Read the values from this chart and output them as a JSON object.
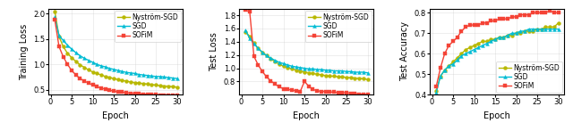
{
  "colors": {
    "nystrom": "#b8b800",
    "sgd": "#00bcd4",
    "sofim": "#f44336"
  },
  "marker_nystrom": "o",
  "marker_sgd": "^",
  "marker_sofim": "s",
  "epochs": [
    1,
    2,
    3,
    4,
    5,
    6,
    7,
    8,
    9,
    10,
    11,
    12,
    13,
    14,
    15,
    16,
    17,
    18,
    19,
    20,
    21,
    22,
    23,
    24,
    25,
    26,
    27,
    28,
    29,
    30
  ],
  "train_nystrom": [
    2.05,
    1.55,
    1.35,
    1.22,
    1.13,
    1.06,
    0.99,
    0.94,
    0.89,
    0.85,
    0.82,
    0.79,
    0.76,
    0.74,
    0.72,
    0.7,
    0.68,
    0.67,
    0.65,
    0.64,
    0.63,
    0.62,
    0.61,
    0.6,
    0.59,
    0.58,
    0.57,
    0.57,
    0.56,
    0.55
  ],
  "train_sgd": [
    1.93,
    1.57,
    1.47,
    1.38,
    1.3,
    1.23,
    1.17,
    1.12,
    1.08,
    1.04,
    1.0,
    0.97,
    0.95,
    0.92,
    0.9,
    0.88,
    0.86,
    0.84,
    0.83,
    0.82,
    0.8,
    0.79,
    0.78,
    0.77,
    0.76,
    0.76,
    0.75,
    0.74,
    0.73,
    0.72
  ],
  "train_sofim": [
    1.88,
    1.35,
    1.15,
    1.0,
    0.88,
    0.79,
    0.72,
    0.67,
    0.63,
    0.59,
    0.56,
    0.53,
    0.51,
    0.49,
    0.47,
    0.46,
    0.45,
    0.44,
    0.43,
    0.42,
    0.42,
    0.41,
    0.41,
    0.4,
    0.4,
    0.39,
    0.39,
    0.38,
    0.38,
    0.38
  ],
  "test_nystrom": [
    1.55,
    1.48,
    1.38,
    1.3,
    1.24,
    1.19,
    1.14,
    1.1,
    1.06,
    1.03,
    1.01,
    0.99,
    0.97,
    0.96,
    0.94,
    0.93,
    0.92,
    0.91,
    0.9,
    0.89,
    0.88,
    0.88,
    0.87,
    0.87,
    0.86,
    0.86,
    0.85,
    0.85,
    0.84,
    0.83
  ],
  "test_sgd": [
    1.57,
    1.45,
    1.37,
    1.3,
    1.24,
    1.19,
    1.15,
    1.12,
    1.09,
    1.07,
    1.05,
    1.03,
    1.02,
    1.01,
    1.0,
    0.99,
    0.99,
    0.98,
    0.98,
    0.97,
    0.97,
    0.96,
    0.96,
    0.96,
    0.95,
    0.95,
    0.94,
    0.94,
    0.94,
    0.93
  ],
  "test_sofim": [
    1.88,
    1.85,
    1.18,
    1.05,
    0.95,
    0.87,
    0.81,
    0.76,
    0.72,
    0.69,
    0.68,
    0.67,
    0.66,
    0.65,
    0.8,
    0.73,
    0.68,
    0.66,
    0.65,
    0.65,
    0.64,
    0.64,
    0.63,
    0.63,
    0.63,
    0.62,
    0.62,
    0.61,
    0.61,
    0.6
  ],
  "acc_nystrom": [
    0.42,
    0.49,
    0.52,
    0.54,
    0.56,
    0.58,
    0.6,
    0.62,
    0.63,
    0.64,
    0.65,
    0.66,
    0.66,
    0.67,
    0.67,
    0.68,
    0.68,
    0.69,
    0.69,
    0.7,
    0.7,
    0.71,
    0.71,
    0.71,
    0.72,
    0.72,
    0.73,
    0.73,
    0.73,
    0.75
  ],
  "acc_sgd": [
    0.41,
    0.49,
    0.52,
    0.54,
    0.55,
    0.57,
    0.59,
    0.6,
    0.61,
    0.62,
    0.63,
    0.64,
    0.65,
    0.66,
    0.67,
    0.68,
    0.68,
    0.69,
    0.7,
    0.7,
    0.71,
    0.71,
    0.72,
    0.72,
    0.72,
    0.72,
    0.72,
    0.72,
    0.72,
    0.72
  ],
  "acc_sofim": [
    0.44,
    0.53,
    0.6,
    0.64,
    0.66,
    0.68,
    0.71,
    0.73,
    0.74,
    0.74,
    0.74,
    0.75,
    0.75,
    0.76,
    0.76,
    0.77,
    0.77,
    0.77,
    0.78,
    0.78,
    0.79,
    0.79,
    0.79,
    0.8,
    0.8,
    0.8,
    0.8,
    0.81,
    0.8,
    0.8
  ],
  "plot1_ylim": [
    0.4,
    2.1
  ],
  "plot2_ylim": [
    0.6,
    1.9
  ],
  "plot3_ylim": [
    0.4,
    0.82
  ],
  "plot1_yticks": [
    0.5,
    1.0,
    1.5,
    2.0
  ],
  "plot2_yticks": [
    0.8,
    1.0,
    1.2,
    1.4,
    1.6,
    1.8
  ],
  "plot3_yticks": [
    0.4,
    0.5,
    0.6,
    0.7,
    0.8
  ],
  "xlabel": "Epoch",
  "ylabel1": "Training Loss",
  "ylabel2": "Test Loss",
  "ylabel3": "Test Accuracy",
  "xticks": [
    0,
    5,
    10,
    15,
    20,
    25,
    30
  ],
  "legend_labels": [
    "Nyström-SGD",
    "SGD",
    "SOFiM"
  ],
  "markersize": 2.8,
  "linewidth": 1.0,
  "markevery": 1
}
